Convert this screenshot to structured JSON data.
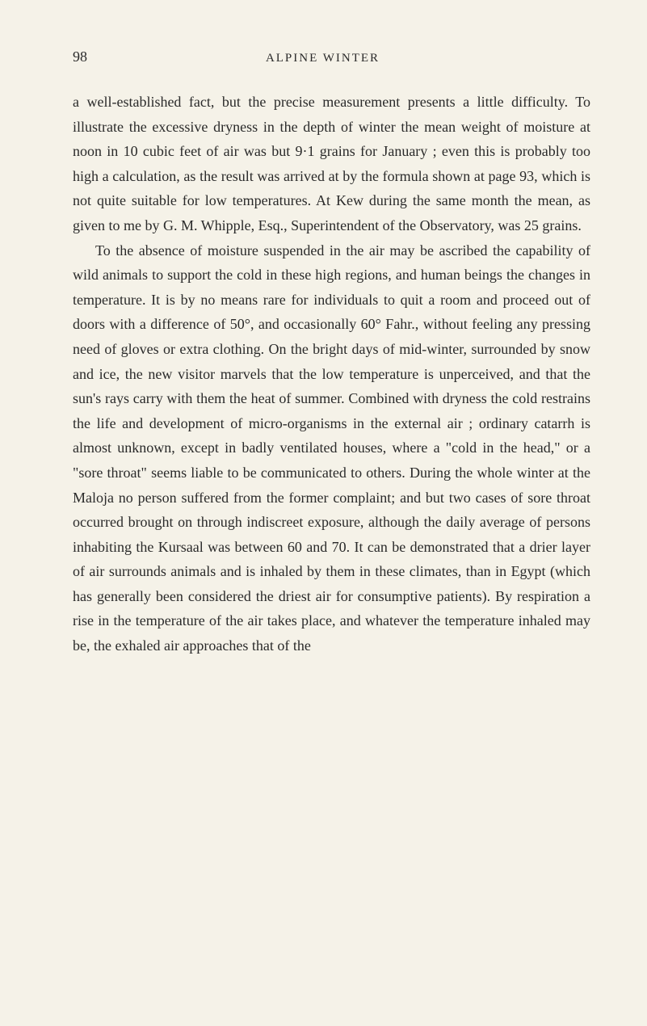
{
  "header": {
    "page_number": "98",
    "chapter_title": "ALPINE WINTER"
  },
  "paragraphs": {
    "p1": "a well-established fact, but the precise measurement presents a little difficulty. To illustrate the excessive dryness in the depth of winter the mean weight of moisture at noon in 10 cubic feet of air was but 9·1 grains for January ; even this is probably too high a calculation, as the result was arrived at by the formula shown at page 93, which is not quite suitable for low temperatures. At Kew during the same month the mean, as given to me by G. M. Whipple, Esq., Superintendent of the Observatory, was 25 grains.",
    "p2": "To the absence of moisture suspended in the air may be ascribed the capability of wild animals to support the cold in these high regions, and human beings the changes in temperature. It is by no means rare for individuals to quit a room and proceed out of doors with a difference of 50°, and occasionally 60° Fahr., without feeling any pressing need of gloves or extra clothing. On the bright days of mid-winter, surrounded by snow and ice, the new visitor marvels that the low temperature is unperceived, and that the sun's rays carry with them the heat of summer. Combined with dryness the cold restrains the life and development of micro-organisms in the external air ; ordinary catarrh is almost unknown, except in badly ventilated houses, where a \"cold in the head,\" or a \"sore throat\" seems liable to be communicated to others. During the whole winter at the Maloja no person suffered from the former complaint; and but two cases of sore throat occurred brought on through indiscreet exposure, although the daily average of persons inhabiting the Kursaal was between 60 and 70. It can be demonstrated that a drier layer of air surrounds animals and is inhaled by them in these climates, than in Egypt (which has generally been considered the driest air for consumptive patients). By respiration a rise in the temperature of the air takes place, and whatever the temperature inhaled may be, the exhaled air approaches that of the"
  }
}
